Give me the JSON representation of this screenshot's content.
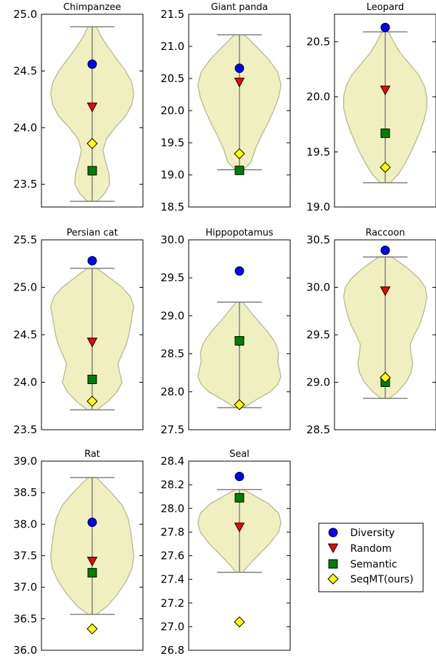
{
  "chart_data": [
    {
      "type": "violin",
      "title": "Chimpanzee",
      "ylim": [
        23.3,
        25.0
      ],
      "yticks": [
        23.5,
        24.0,
        24.5,
        25.0
      ],
      "yticklabels": [
        "23.5",
        "24.0",
        "24.5",
        "25.0"
      ],
      "violin": {
        "min": 23.35,
        "max": 24.89,
        "profile": [
          [
            23.35,
            0.12
          ],
          [
            23.42,
            0.3
          ],
          [
            23.5,
            0.42
          ],
          [
            23.6,
            0.4
          ],
          [
            23.7,
            0.32
          ],
          [
            23.8,
            0.26
          ],
          [
            23.9,
            0.34
          ],
          [
            24.0,
            0.55
          ],
          [
            24.1,
            0.8
          ],
          [
            24.2,
            0.95
          ],
          [
            24.3,
            1.0
          ],
          [
            24.4,
            0.95
          ],
          [
            24.5,
            0.8
          ],
          [
            24.6,
            0.6
          ],
          [
            24.7,
            0.4
          ],
          [
            24.8,
            0.22
          ],
          [
            24.89,
            0.1
          ]
        ]
      },
      "points": {
        "Diversity": 24.56,
        "Random": 24.18,
        "Semantic": 23.62,
        "SeqMT(ours)": 23.86
      }
    },
    {
      "type": "violin",
      "title": "Giant panda",
      "ylim": [
        18.5,
        21.5
      ],
      "yticks": [
        18.5,
        19.0,
        19.5,
        20.0,
        20.5,
        21.0,
        21.5
      ],
      "yticklabels": [
        "18.5",
        "19.0",
        "19.5",
        "20.0",
        "20.5",
        "21.0",
        "21.5"
      ],
      "violin": {
        "min": 19.08,
        "max": 21.18,
        "profile": [
          [
            19.08,
            0.1
          ],
          [
            19.2,
            0.28
          ],
          [
            19.4,
            0.38
          ],
          [
            19.6,
            0.52
          ],
          [
            19.8,
            0.68
          ],
          [
            20.0,
            0.82
          ],
          [
            20.2,
            0.94
          ],
          [
            20.4,
            1.0
          ],
          [
            20.6,
            0.92
          ],
          [
            20.8,
            0.7
          ],
          [
            21.0,
            0.4
          ],
          [
            21.18,
            0.12
          ]
        ]
      },
      "points": {
        "Diversity": 20.66,
        "Random": 20.44,
        "Semantic": 19.07,
        "SeqMT(ours)": 19.33
      }
    },
    {
      "type": "violin",
      "title": "Leopard",
      "ylim": [
        19.0,
        20.75
      ],
      "yticks": [
        19.0,
        19.5,
        20.0,
        20.5
      ],
      "yticklabels": [
        "19.0",
        "19.5",
        "20.0",
        "20.5"
      ],
      "violin": {
        "min": 19.22,
        "max": 20.59,
        "profile": [
          [
            19.22,
            0.12
          ],
          [
            19.3,
            0.32
          ],
          [
            19.4,
            0.48
          ],
          [
            19.5,
            0.62
          ],
          [
            19.6,
            0.74
          ],
          [
            19.7,
            0.85
          ],
          [
            19.8,
            0.94
          ],
          [
            19.9,
            1.0
          ],
          [
            20.0,
            1.0
          ],
          [
            20.1,
            0.94
          ],
          [
            20.2,
            0.8
          ],
          [
            20.3,
            0.58
          ],
          [
            20.4,
            0.36
          ],
          [
            20.5,
            0.2
          ],
          [
            20.59,
            0.08
          ]
        ]
      },
      "points": {
        "Diversity": 20.63,
        "Random": 20.06,
        "Semantic": 19.67,
        "SeqMT(ours)": 19.36
      }
    },
    {
      "type": "violin",
      "title": "Persian cat",
      "ylim": [
        23.5,
        25.5
      ],
      "yticks": [
        23.5,
        24.0,
        24.5,
        25.0,
        25.5
      ],
      "yticklabels": [
        "23.5",
        "24.0",
        "24.5",
        "25.0",
        "25.5"
      ],
      "violin": {
        "min": 23.71,
        "max": 25.2,
        "profile": [
          [
            23.71,
            0.12
          ],
          [
            23.8,
            0.38
          ],
          [
            23.9,
            0.6
          ],
          [
            24.0,
            0.72
          ],
          [
            24.1,
            0.66
          ],
          [
            24.2,
            0.62
          ],
          [
            24.3,
            0.72
          ],
          [
            24.4,
            0.82
          ],
          [
            24.5,
            0.88
          ],
          [
            24.6,
            0.92
          ],
          [
            24.7,
            0.96
          ],
          [
            24.8,
            1.0
          ],
          [
            24.9,
            0.92
          ],
          [
            25.0,
            0.72
          ],
          [
            25.1,
            0.42
          ],
          [
            25.2,
            0.12
          ]
        ]
      },
      "points": {
        "Diversity": 25.28,
        "Random": 24.42,
        "Semantic": 24.03,
        "SeqMT(ours)": 23.8
      }
    },
    {
      "type": "violin",
      "title": "Hippopotamus",
      "ylim": [
        27.5,
        30.0
      ],
      "yticks": [
        27.5,
        28.0,
        28.5,
        29.0,
        29.5,
        30.0
      ],
      "yticklabels": [
        "27.5",
        "28.0",
        "28.5",
        "29.0",
        "29.5",
        "30.0"
      ],
      "violin": {
        "min": 27.79,
        "max": 29.18,
        "profile": [
          [
            27.79,
            0.1
          ],
          [
            27.9,
            0.42
          ],
          [
            28.0,
            0.74
          ],
          [
            28.1,
            0.92
          ],
          [
            28.2,
            1.0
          ],
          [
            28.3,
            0.96
          ],
          [
            28.4,
            0.92
          ],
          [
            28.5,
            0.94
          ],
          [
            28.6,
            0.9
          ],
          [
            28.7,
            0.8
          ],
          [
            28.8,
            0.66
          ],
          [
            28.9,
            0.5
          ],
          [
            29.0,
            0.34
          ],
          [
            29.1,
            0.2
          ],
          [
            29.18,
            0.08
          ]
        ]
      },
      "points": {
        "Diversity": 29.59,
        "Random": 28.66,
        "Semantic": 28.67,
        "SeqMT(ours)": 27.83
      }
    },
    {
      "type": "violin",
      "title": "Raccoon",
      "ylim": [
        28.5,
        30.5
      ],
      "yticks": [
        28.5,
        29.0,
        29.5,
        30.0,
        30.5
      ],
      "yticklabels": [
        "28.5",
        "29.0",
        "29.5",
        "30.0",
        "30.5"
      ],
      "violin": {
        "min": 28.83,
        "max": 30.32,
        "profile": [
          [
            28.83,
            0.1
          ],
          [
            28.9,
            0.3
          ],
          [
            29.0,
            0.5
          ],
          [
            29.1,
            0.62
          ],
          [
            29.2,
            0.66
          ],
          [
            29.3,
            0.62
          ],
          [
            29.4,
            0.6
          ],
          [
            29.5,
            0.7
          ],
          [
            29.6,
            0.82
          ],
          [
            29.7,
            0.9
          ],
          [
            29.8,
            0.96
          ],
          [
            29.9,
            1.0
          ],
          [
            30.0,
            0.96
          ],
          [
            30.1,
            0.8
          ],
          [
            30.2,
            0.54
          ],
          [
            30.32,
            0.16
          ]
        ]
      },
      "points": {
        "Diversity": 30.39,
        "Random": 29.96,
        "Semantic": 29.0,
        "SeqMT(ours)": 29.05
      }
    },
    {
      "type": "violin",
      "title": "Rat",
      "ylim": [
        36.0,
        39.0
      ],
      "yticks": [
        36.0,
        36.5,
        37.0,
        37.5,
        38.0,
        38.5,
        39.0
      ],
      "yticklabels": [
        "36.0",
        "36.5",
        "37.0",
        "37.5",
        "38.0",
        "38.5",
        "39.0"
      ],
      "violin": {
        "min": 36.57,
        "max": 38.74,
        "profile": [
          [
            36.57,
            0.1
          ],
          [
            36.7,
            0.36
          ],
          [
            36.9,
            0.62
          ],
          [
            37.1,
            0.82
          ],
          [
            37.3,
            0.96
          ],
          [
            37.5,
            1.0
          ],
          [
            37.7,
            0.96
          ],
          [
            37.9,
            0.92
          ],
          [
            38.1,
            0.86
          ],
          [
            38.3,
            0.72
          ],
          [
            38.5,
            0.46
          ],
          [
            38.65,
            0.24
          ],
          [
            38.74,
            0.1
          ]
        ]
      },
      "points": {
        "Diversity": 38.03,
        "Random": 37.41,
        "Semantic": 37.23,
        "SeqMT(ours)": 36.34
      }
    },
    {
      "type": "violin",
      "title": "Seal",
      "ylim": [
        26.8,
        28.4
      ],
      "yticks": [
        26.8,
        27.0,
        27.2,
        27.4,
        27.6,
        27.8,
        28.0,
        28.2,
        28.4
      ],
      "yticklabels": [
        "26.8",
        "27.0",
        "27.2",
        "27.4",
        "27.6",
        "27.8",
        "28.0",
        "28.2",
        "28.4"
      ],
      "violin": {
        "min": 27.46,
        "max": 28.16,
        "profile": [
          [
            27.46,
            0.08
          ],
          [
            27.52,
            0.22
          ],
          [
            27.6,
            0.44
          ],
          [
            27.7,
            0.72
          ],
          [
            27.8,
            0.94
          ],
          [
            27.88,
            1.0
          ],
          [
            27.96,
            0.94
          ],
          [
            28.04,
            0.7
          ],
          [
            28.1,
            0.4
          ],
          [
            28.16,
            0.1
          ]
        ]
      },
      "points": {
        "Diversity": 28.27,
        "Random": 27.84,
        "Semantic": 28.09,
        "SeqMT(ours)": 27.04
      }
    }
  ],
  "legend": [
    {
      "label": "Diversity",
      "marker": "circle",
      "color": "#0000ff"
    },
    {
      "label": "Random",
      "marker": "triangle-down",
      "color": "#ff0000"
    },
    {
      "label": "Semantic",
      "marker": "square",
      "color": "#008000"
    },
    {
      "label": "SeqMT(ours)",
      "marker": "diamond",
      "color": "#ffff00"
    }
  ],
  "colors": {
    "violin_fill": "#efefc0",
    "violin_edge": "#b8b890",
    "line": "#808080"
  }
}
